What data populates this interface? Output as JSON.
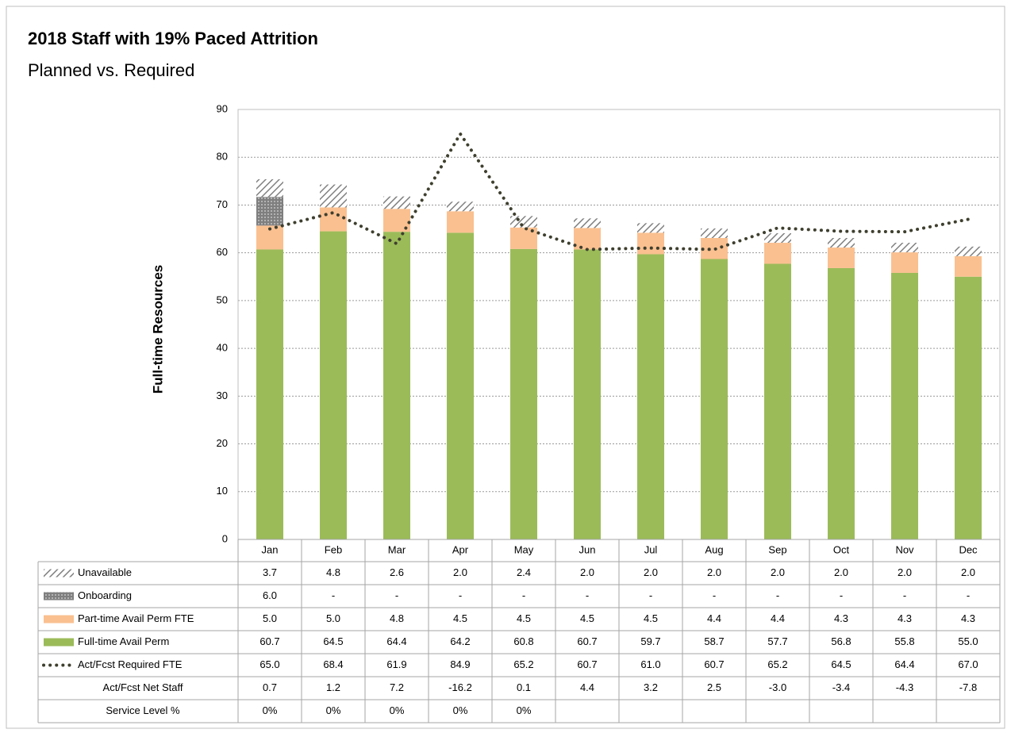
{
  "chart_data": {
    "type": "bar",
    "title": "2018 Staff with 19% Paced Attrition",
    "subtitle": "Planned vs. Required",
    "y_label": "Full-time Resources",
    "categories": [
      "Jan",
      "Feb",
      "Mar",
      "Apr",
      "May",
      "Jun",
      "Jul",
      "Aug",
      "Sep",
      "Oct",
      "Nov",
      "Dec"
    ],
    "ylim": [
      0,
      90
    ],
    "yticks": [
      0,
      10,
      20,
      30,
      40,
      50,
      60,
      70,
      80,
      90
    ],
    "grid": true,
    "stacked": true,
    "series": [
      {
        "name": "Unavailable",
        "type": "bar",
        "color": "#808080",
        "pattern": "hatch",
        "values": [
          3.7,
          4.8,
          2.6,
          2,
          2.4,
          2,
          2,
          2,
          2,
          2,
          2,
          2
        ],
        "value_labels": [
          "3.7",
          "4.8",
          "2.6",
          "2.0",
          "2.4",
          "2.0",
          "2.0",
          "2.0",
          "2.0",
          "2.0",
          "2.0",
          "2.0"
        ]
      },
      {
        "name": "Onboarding",
        "type": "bar",
        "color": "#7f7f7f",
        "pattern": "dots",
        "values": [
          6,
          null,
          null,
          null,
          null,
          null,
          null,
          null,
          null,
          null,
          null,
          null
        ],
        "value_labels": [
          "6.0",
          "-",
          "-",
          "-",
          "-",
          "-",
          "-",
          "-",
          "-",
          "-",
          "-",
          "-"
        ]
      },
      {
        "name": "Part-time Avail Perm FTE",
        "type": "bar",
        "color": "#fac090",
        "values": [
          5,
          5,
          4.8,
          4.5,
          4.5,
          4.5,
          4.5,
          4.4,
          4.4,
          4.3,
          4.3,
          4.3
        ],
        "value_labels": [
          "5.0",
          "5.0",
          "4.8",
          "4.5",
          "4.5",
          "4.5",
          "4.5",
          "4.4",
          "4.4",
          "4.3",
          "4.3",
          "4.3"
        ]
      },
      {
        "name": "Full-time Avail Perm",
        "type": "bar",
        "color": "#9bbb59",
        "values": [
          60.7,
          64.5,
          64.4,
          64.2,
          60.8,
          60.7,
          59.7,
          58.7,
          57.7,
          56.8,
          55.8,
          55
        ],
        "value_labels": [
          "60.7",
          "64.5",
          "64.4",
          "64.2",
          "60.8",
          "60.7",
          "59.7",
          "58.7",
          "57.7",
          "56.8",
          "55.8",
          "55.0"
        ]
      },
      {
        "name": "Act/Fcst Required FTE",
        "type": "line",
        "color": "#3f3f2f",
        "dash": "dotted",
        "values": [
          65,
          68.4,
          61.9,
          84.9,
          65.2,
          60.7,
          61,
          60.7,
          65.2,
          64.5,
          64.4,
          67
        ],
        "value_labels": [
          "65.0",
          "68.4",
          "61.9",
          "84.9",
          "65.2",
          "60.7",
          "61.0",
          "60.7",
          "65.2",
          "64.5",
          "64.4",
          "67.0"
        ]
      }
    ],
    "table_rows": [
      {
        "name": "Act/Fcst Net Staff",
        "values": [
          0.7,
          1.2,
          7.2,
          -16.2,
          0.1,
          4.4,
          3.2,
          2.5,
          -3,
          -3.4,
          -4.3,
          -7.8
        ],
        "value_labels": [
          "0.7",
          "1.2",
          "7.2",
          "-16.2",
          "0.1",
          "4.4",
          "3.2",
          "2.5",
          "-3.0",
          "-3.4",
          "-4.3",
          "-7.8"
        ]
      },
      {
        "name": "Service Level %",
        "values": [
          0,
          0,
          0,
          0,
          0,
          null,
          null,
          null,
          null,
          null,
          null,
          null
        ],
        "value_labels": [
          "0%",
          "0%",
          "0%",
          "0%",
          "0%",
          null,
          null,
          null,
          null,
          null,
          null,
          null
        ]
      }
    ]
  }
}
